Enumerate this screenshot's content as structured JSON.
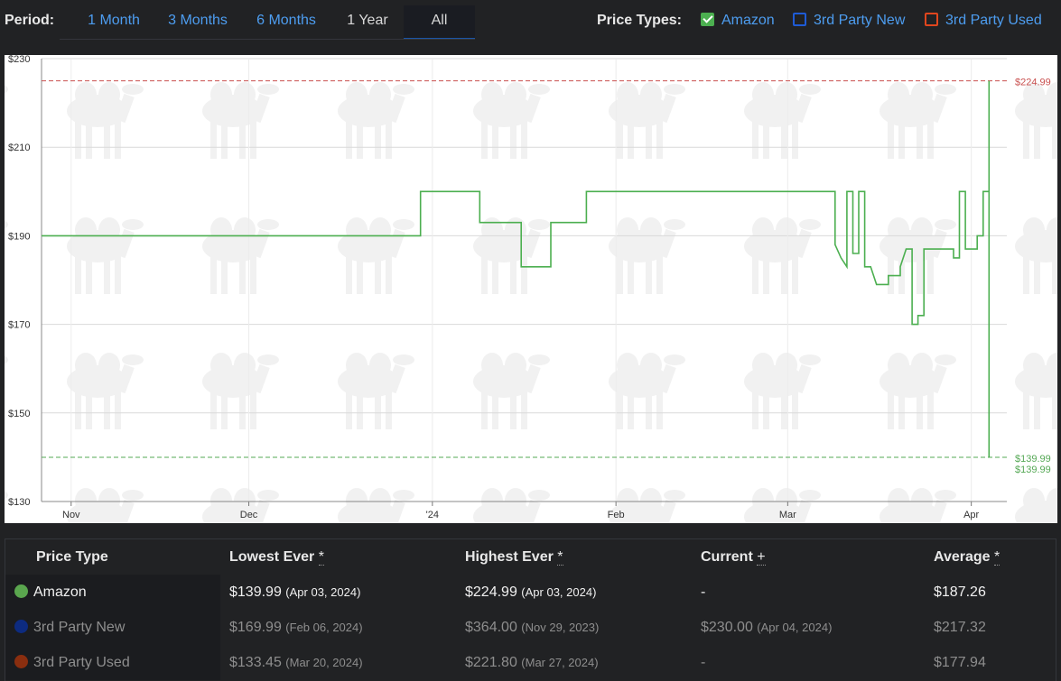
{
  "period": {
    "label": "Period:",
    "tabs": [
      {
        "label": "1 Month"
      },
      {
        "label": "3 Months"
      },
      {
        "label": "6 Months"
      },
      {
        "label": "1 Year"
      },
      {
        "label": "All"
      }
    ],
    "active": "All"
  },
  "price_types": {
    "label": "Price Types:",
    "items": [
      {
        "label": "Amazon",
        "checked": true,
        "color": "#4caf50"
      },
      {
        "label": "3rd Party New",
        "checked": false,
        "color": "#1e5bd6"
      },
      {
        "label": "3rd Party Used",
        "checked": false,
        "color": "#e0461e"
      }
    ]
  },
  "chart_data": {
    "type": "line",
    "xlabel": "",
    "ylabel": "",
    "ylim": [
      130,
      230
    ],
    "y_ticks": [
      {
        "value": 130,
        "label": "$130"
      },
      {
        "value": 150,
        "label": "$150"
      },
      {
        "value": 170,
        "label": "$170"
      },
      {
        "value": 190,
        "label": "$190"
      },
      {
        "value": 210,
        "label": "$210"
      },
      {
        "value": 230,
        "label": "$230"
      }
    ],
    "xlim": [
      "2023-10-27",
      "2024-04-07"
    ],
    "x_ticks": [
      {
        "date": "2023-11-01",
        "label": "Nov"
      },
      {
        "date": "2023-12-01",
        "label": "Dec"
      },
      {
        "date": "2024-01-01",
        "label": "'24"
      },
      {
        "date": "2024-02-01",
        "label": "Feb"
      },
      {
        "date": "2024-03-01",
        "label": "Mar"
      },
      {
        "date": "2024-04-01",
        "label": "Apr"
      }
    ],
    "grid": true,
    "reference_lines": [
      {
        "value": 224.99,
        "label": "$224.99",
        "color": "#c9504f",
        "style": "dashed"
      },
      {
        "value": 139.99,
        "label": "$139.99",
        "color": "#55a855",
        "style": "dashed"
      }
    ],
    "end_labels": [
      {
        "text": "$139.99",
        "color": "#55a855"
      }
    ],
    "series": [
      {
        "color": "#4caf50",
        "step": true,
        "points": [
          [
            "2023-10-27",
            190
          ],
          [
            "2023-12-30",
            190
          ],
          [
            "2023-12-30",
            200
          ],
          [
            "2024-01-09",
            200
          ],
          [
            "2024-01-09",
            193
          ],
          [
            "2024-01-16",
            193
          ],
          [
            "2024-01-16",
            183
          ],
          [
            "2024-01-21",
            183
          ],
          [
            "2024-01-21",
            193
          ],
          [
            "2024-01-27",
            193
          ],
          [
            "2024-01-27",
            200
          ],
          [
            "2024-03-09",
            200
          ],
          [
            "2024-03-09",
            188
          ],
          [
            "2024-03-10",
            185
          ],
          [
            "2024-03-11",
            183
          ],
          [
            "2024-03-11",
            200
          ],
          [
            "2024-03-12",
            200
          ],
          [
            "2024-03-12",
            186
          ],
          [
            "2024-03-13",
            186
          ],
          [
            "2024-03-13",
            200
          ],
          [
            "2024-03-14",
            200
          ],
          [
            "2024-03-14",
            183
          ],
          [
            "2024-03-15",
            183
          ],
          [
            "2024-03-16",
            179
          ],
          [
            "2024-03-18",
            179
          ],
          [
            "2024-03-18",
            181
          ],
          [
            "2024-03-20",
            181
          ],
          [
            "2024-03-20",
            183
          ],
          [
            "2024-03-21",
            187
          ],
          [
            "2024-03-22",
            187
          ],
          [
            "2024-03-22",
            170
          ],
          [
            "2024-03-23",
            170
          ],
          [
            "2024-03-23",
            172
          ],
          [
            "2024-03-24",
            172
          ],
          [
            "2024-03-24",
            187
          ],
          [
            "2024-03-29",
            187
          ],
          [
            "2024-03-29",
            185
          ],
          [
            "2024-03-30",
            185
          ],
          [
            "2024-03-30",
            200
          ],
          [
            "2024-03-31",
            200
          ],
          [
            "2024-03-31",
            187
          ],
          [
            "2024-04-02",
            187
          ],
          [
            "2024-04-02",
            190
          ],
          [
            "2024-04-03",
            190
          ],
          [
            "2024-04-03",
            200
          ],
          [
            "2024-04-04",
            200
          ],
          [
            "2024-04-04",
            225
          ],
          [
            "2024-04-04",
            140
          ]
        ]
      }
    ]
  },
  "table": {
    "headers": {
      "price_type": "Price Type",
      "lowest": "Lowest Ever",
      "highest": "Highest Ever",
      "current": "Current",
      "average": "Average",
      "lowest_mark": "*",
      "highest_mark": "*",
      "current_mark": "+",
      "average_mark": "*"
    },
    "rows": [
      {
        "name": "Amazon",
        "color": "#5aa64e",
        "lowest": "$139.99",
        "lowest_date": "(Apr 03, 2024)",
        "highest": "$224.99",
        "highest_date": "(Apr 03, 2024)",
        "current": "-",
        "current_date": "",
        "average": "$187.26"
      },
      {
        "name": "3rd Party New",
        "color": "#0d2b80",
        "lowest": "$169.99",
        "lowest_date": "(Feb 06, 2024)",
        "highest": "$364.00",
        "highest_date": "(Nov 29, 2023)",
        "current": "$230.00",
        "current_date": "(Apr 04, 2024)",
        "average": "$217.32"
      },
      {
        "name": "3rd Party Used",
        "color": "#8a2e0f",
        "lowest": "$133.45",
        "lowest_date": "(Mar 20, 2024)",
        "highest": "$221.80",
        "highest_date": "(Mar 27, 2024)",
        "current": "-",
        "current_date": "",
        "average": "$177.94"
      }
    ]
  }
}
